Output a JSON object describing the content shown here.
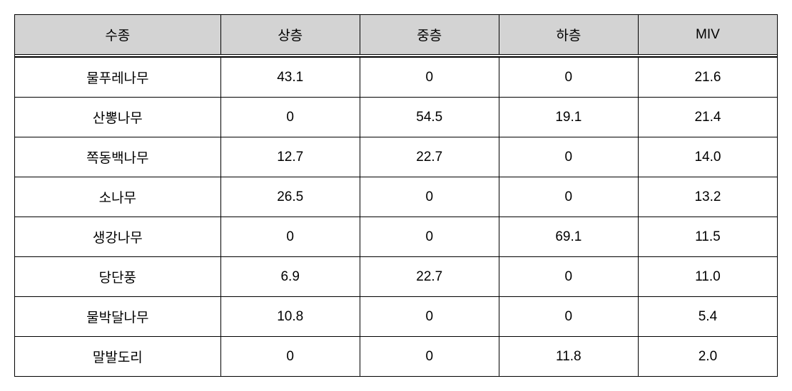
{
  "table": {
    "columns": [
      "수종",
      "상층",
      "중층",
      "하층",
      "MIV"
    ],
    "rows": [
      [
        "물푸레나무",
        "43.1",
        "0",
        "0",
        "21.6"
      ],
      [
        "산뽕나무",
        "0",
        "54.5",
        "19.1",
        "21.4"
      ],
      [
        "쪽동백나무",
        "12.7",
        "22.7",
        "0",
        "14.0"
      ],
      [
        "소나무",
        "26.5",
        "0",
        "0",
        "13.2"
      ],
      [
        "생강나무",
        "0",
        "0",
        "69.1",
        "11.5"
      ],
      [
        "당단풍",
        "6.9",
        "22.7",
        "0",
        "11.0"
      ],
      [
        "물박달나무",
        "10.8",
        "0",
        "0",
        "5.4"
      ],
      [
        "말발도리",
        "0",
        "0",
        "11.8",
        "2.0"
      ]
    ],
    "header_bg": "#d3d3d3",
    "border_color": "#000000",
    "background_color": "#ffffff",
    "font_size": 19,
    "cell_padding": "14px 8px",
    "column_widths_pct": [
      27,
      18.25,
      18.25,
      18.25,
      18.25
    ]
  }
}
